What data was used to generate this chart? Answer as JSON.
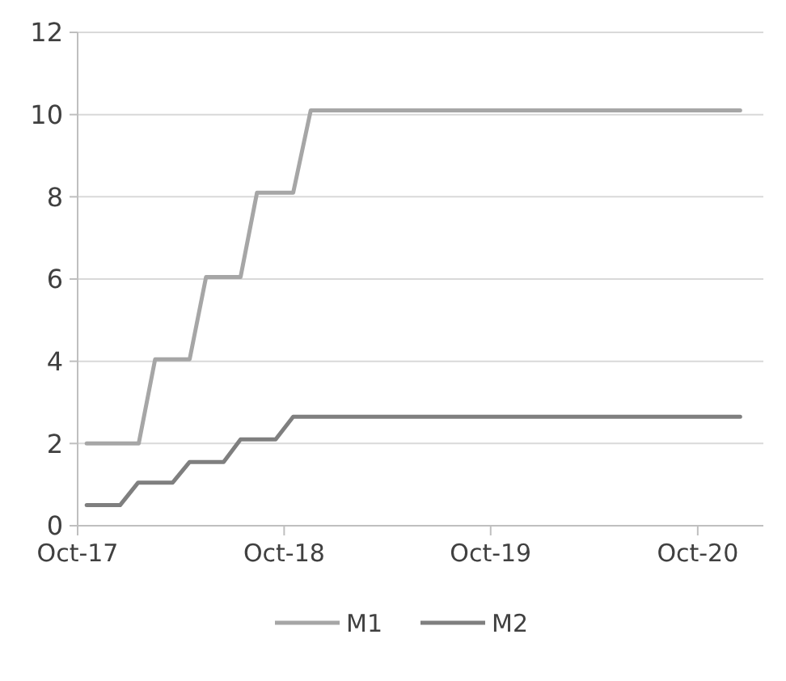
{
  "chart_data": {
    "type": "line",
    "grid": "y",
    "legend": "bottom",
    "line_style": "solid",
    "xlim": [
      "2017-10-01",
      "2021-01-25"
    ],
    "xticks": [
      {
        "value": "2017-10-01",
        "label": "Oct-17"
      },
      {
        "value": "2018-10-01",
        "label": "Oct-18"
      },
      {
        "value": "2019-10-01",
        "label": "Oct-19"
      },
      {
        "value": "2020-10-01",
        "label": "Oct-20"
      }
    ],
    "ylim": [
      0,
      12
    ],
    "yticks": [
      0,
      2,
      4,
      6,
      8,
      10,
      12
    ],
    "series": [
      {
        "name": "M1",
        "color": "#a6a6a6",
        "x": [
          "2017-10-17",
          "2018-01-17",
          "2018-02-15",
          "2018-04-17",
          "2018-05-16",
          "2018-07-16",
          "2018-08-14",
          "2018-10-17",
          "2018-11-17",
          "2020-12-15"
        ],
        "values": [
          2,
          2,
          4.05,
          4.05,
          6.05,
          6.05,
          8.1,
          8.1,
          10.1,
          10.1
        ]
      },
      {
        "name": "M2",
        "color": "#7f7f7f",
        "x": [
          "2017-10-17",
          "2017-12-15",
          "2018-01-16",
          "2018-03-18",
          "2018-04-17",
          "2018-06-16",
          "2018-07-16",
          "2018-09-16",
          "2018-10-17",
          "2020-12-15"
        ],
        "values": [
          0.5,
          0.5,
          1.05,
          1.05,
          1.55,
          1.55,
          2.1,
          2.1,
          2.65,
          2.65
        ]
      }
    ]
  }
}
